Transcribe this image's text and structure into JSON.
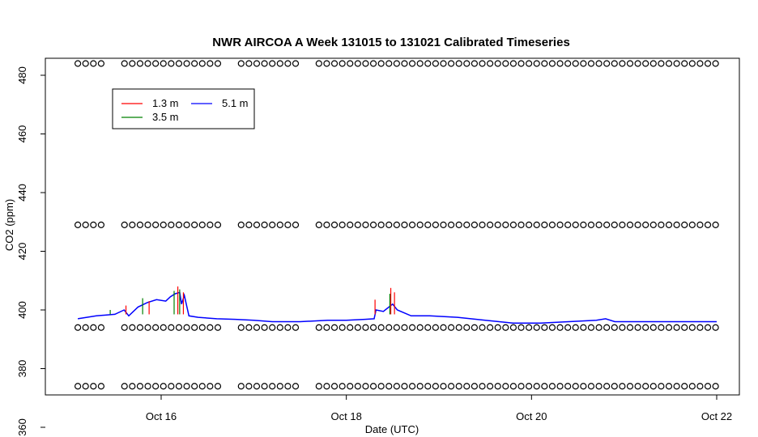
{
  "chart_data": {
    "type": "line",
    "title": "NWR AIRCOA A  Week 131015 to 131021  Calibrated Timeseries",
    "xlabel": "Date (UTC)",
    "ylabel": "CO2 (ppm)",
    "xlim": [
      15.0,
      22.1
    ],
    "ylim": [
      368,
      486
    ],
    "x_ticks": [
      {
        "value": 16,
        "label": "Oct 16"
      },
      {
        "value": 18,
        "label": "Oct 18"
      },
      {
        "value": 20,
        "label": "Oct 20"
      },
      {
        "value": 22,
        "label": "Oct 22"
      }
    ],
    "y_ticks": [
      360,
      380,
      400,
      420,
      440,
      460,
      480
    ],
    "legend": {
      "placement": "top-left",
      "entries": [
        {
          "label": "1.3 m",
          "color": "#ff0000"
        },
        {
          "label": "3.5 m",
          "color": "#008000"
        },
        {
          "label": "5.1 m",
          "color": "#0000ff"
        }
      ]
    },
    "series": [
      {
        "name": "5.1 m",
        "color": "#0000ff",
        "points": [
          [
            15.1,
            397.0
          ],
          [
            15.3,
            398.0
          ],
          [
            15.5,
            398.5
          ],
          [
            15.6,
            400.0
          ],
          [
            15.65,
            398.0
          ],
          [
            15.75,
            401.0
          ],
          [
            15.85,
            402.5
          ],
          [
            15.95,
            403.5
          ],
          [
            16.05,
            403.0
          ],
          [
            16.1,
            404.5
          ],
          [
            16.15,
            405.5
          ],
          [
            16.2,
            406.0
          ],
          [
            16.22,
            402.0
          ],
          [
            16.25,
            405.0
          ],
          [
            16.3,
            398.0
          ],
          [
            16.4,
            397.5
          ],
          [
            16.6,
            397.0
          ],
          [
            16.8,
            396.8
          ],
          [
            17.0,
            396.5
          ],
          [
            17.2,
            396.0
          ],
          [
            17.5,
            396.0
          ],
          [
            17.8,
            396.5
          ],
          [
            18.0,
            396.5
          ],
          [
            18.2,
            396.8
          ],
          [
            18.3,
            397.0
          ],
          [
            18.32,
            400.0
          ],
          [
            18.4,
            399.5
          ],
          [
            18.5,
            402.0
          ],
          [
            18.55,
            400.0
          ],
          [
            18.7,
            398.0
          ],
          [
            18.9,
            398.0
          ],
          [
            19.2,
            397.5
          ],
          [
            19.5,
            396.5
          ],
          [
            19.8,
            395.5
          ],
          [
            20.1,
            395.5
          ],
          [
            20.4,
            396.0
          ],
          [
            20.7,
            396.5
          ],
          [
            20.8,
            397.0
          ],
          [
            20.9,
            396.0
          ],
          [
            21.2,
            396.0
          ],
          [
            21.5,
            396.0
          ],
          [
            21.8,
            396.0
          ],
          [
            22.0,
            396.0
          ]
        ]
      },
      {
        "name": "1.3 m",
        "color": "#ff0000",
        "points": [
          [
            15.62,
            401.5
          ],
          [
            15.87,
            403.0
          ],
          [
            16.18,
            408.0
          ],
          [
            16.24,
            406.0
          ],
          [
            18.31,
            403.5
          ],
          [
            18.48,
            407.5
          ],
          [
            18.52,
            406.0
          ]
        ]
      },
      {
        "name": "3.5 m",
        "color": "#008000",
        "points": [
          [
            15.45,
            400.0
          ],
          [
            15.8,
            404.0
          ],
          [
            16.14,
            406.5
          ],
          [
            16.2,
            407.0
          ],
          [
            18.47,
            405.5
          ]
        ]
      }
    ],
    "calibration_markers": {
      "marker": "open circle",
      "levels": [
        484,
        429,
        394,
        374
      ],
      "x_start": 15.1,
      "x_end": 22.0,
      "spacing_days": 0.084,
      "gaps": [
        [
          15.42,
          15.56
        ],
        [
          16.62,
          16.8
        ],
        [
          17.5,
          17.66
        ]
      ]
    }
  }
}
